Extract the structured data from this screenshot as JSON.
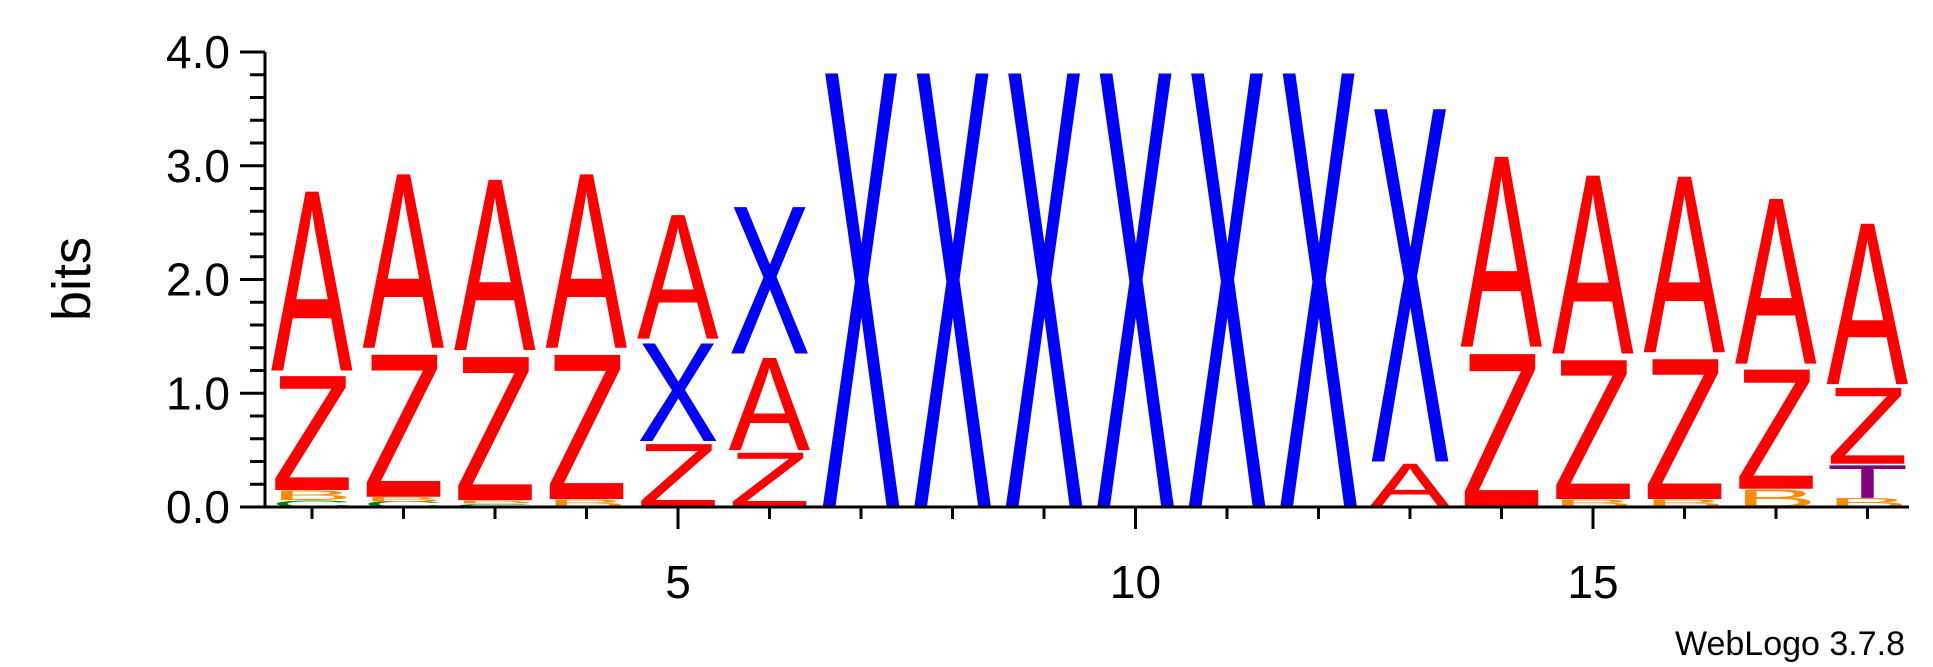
{
  "chart_data": {
    "type": "sequence-logo",
    "ylabel": "bits",
    "ylim": [
      0,
      4.0
    ],
    "y_ticks": [
      {
        "value": 0,
        "label": "0.0"
      },
      {
        "value": 1,
        "label": "1.0"
      },
      {
        "value": 2,
        "label": "2.0"
      },
      {
        "value": 3,
        "label": "3.0"
      },
      {
        "value": 4,
        "label": "4.0"
      }
    ],
    "x_ticks": [
      {
        "value": 5,
        "label": "5"
      },
      {
        "value": 10,
        "label": "10"
      },
      {
        "value": 15,
        "label": "15"
      }
    ],
    "credit": "WebLogo 3.7.8",
    "colors": {
      "A": "#ff0000",
      "Z": "#ff0000",
      "X": "#0000ff",
      "B": "#ff8c00",
      "C": "#008000",
      "T": "#800080"
    },
    "positions": [
      {
        "pos": 1,
        "stack": [
          {
            "letter": "C",
            "bits": 0.06
          },
          {
            "letter": "B",
            "bits": 0.09
          },
          {
            "letter": "Z",
            "bits": 1.05
          },
          {
            "letter": "A",
            "bits": 1.65
          }
        ]
      },
      {
        "pos": 2,
        "stack": [
          {
            "letter": "C",
            "bits": 0.05
          },
          {
            "letter": "B",
            "bits": 0.04
          },
          {
            "letter": "Z",
            "bits": 1.31
          },
          {
            "letter": "A",
            "bits": 1.6
          }
        ]
      },
      {
        "pos": 3,
        "stack": [
          {
            "letter": "C",
            "bits": 0.03
          },
          {
            "letter": "B",
            "bits": 0.03
          },
          {
            "letter": "Z",
            "bits": 1.32
          },
          {
            "letter": "A",
            "bits": 1.57
          }
        ]
      },
      {
        "pos": 4,
        "stack": [
          {
            "letter": "B",
            "bits": 0.07
          },
          {
            "letter": "Z",
            "bits": 1.33
          },
          {
            "letter": "A",
            "bits": 1.6
          }
        ]
      },
      {
        "pos": 5,
        "stack": [
          {
            "letter": "Z",
            "bits": 0.58
          },
          {
            "letter": "X",
            "bits": 0.9
          },
          {
            "letter": "A",
            "bits": 1.14
          }
        ]
      },
      {
        "pos": 6,
        "stack": [
          {
            "letter": "Z",
            "bits": 0.5
          },
          {
            "letter": "A",
            "bits": 0.85
          },
          {
            "letter": "X",
            "bits": 1.35
          }
        ]
      },
      {
        "pos": 7,
        "stack": [
          {
            "letter": "X",
            "bits": 4.0
          }
        ]
      },
      {
        "pos": 8,
        "stack": [
          {
            "letter": "X",
            "bits": 4.0
          }
        ]
      },
      {
        "pos": 9,
        "stack": [
          {
            "letter": "X",
            "bits": 4.0
          }
        ]
      },
      {
        "pos": 10,
        "stack": [
          {
            "letter": "X",
            "bits": 4.0
          }
        ]
      },
      {
        "pos": 11,
        "stack": [
          {
            "letter": "X",
            "bits": 4.0
          }
        ]
      },
      {
        "pos": 12,
        "stack": [
          {
            "letter": "X",
            "bits": 4.0
          }
        ]
      },
      {
        "pos": 13,
        "stack": [
          {
            "letter": "A",
            "bits": 0.4
          },
          {
            "letter": "X",
            "bits": 3.25
          }
        ]
      },
      {
        "pos": 14,
        "stack": [
          {
            "letter": "Z",
            "bits": 1.41
          },
          {
            "letter": "A",
            "bits": 1.75
          }
        ]
      },
      {
        "pos": 15,
        "stack": [
          {
            "letter": "B",
            "bits": 0.07
          },
          {
            "letter": "Z",
            "bits": 1.28
          },
          {
            "letter": "A",
            "bits": 1.64
          }
        ]
      },
      {
        "pos": 16,
        "stack": [
          {
            "letter": "B",
            "bits": 0.07
          },
          {
            "letter": "Z",
            "bits": 1.29
          },
          {
            "letter": "A",
            "bits": 1.62
          }
        ]
      },
      {
        "pos": 17,
        "stack": [
          {
            "letter": "B",
            "bits": 0.16
          },
          {
            "letter": "Z",
            "bits": 1.1
          },
          {
            "letter": "A",
            "bits": 1.52
          }
        ]
      },
      {
        "pos": 18,
        "stack": [
          {
            "letter": "B",
            "bits": 0.08
          },
          {
            "letter": "T",
            "bits": 0.3
          },
          {
            "letter": "Z",
            "bits": 0.7
          },
          {
            "letter": "A",
            "bits": 1.48
          }
        ]
      }
    ]
  }
}
